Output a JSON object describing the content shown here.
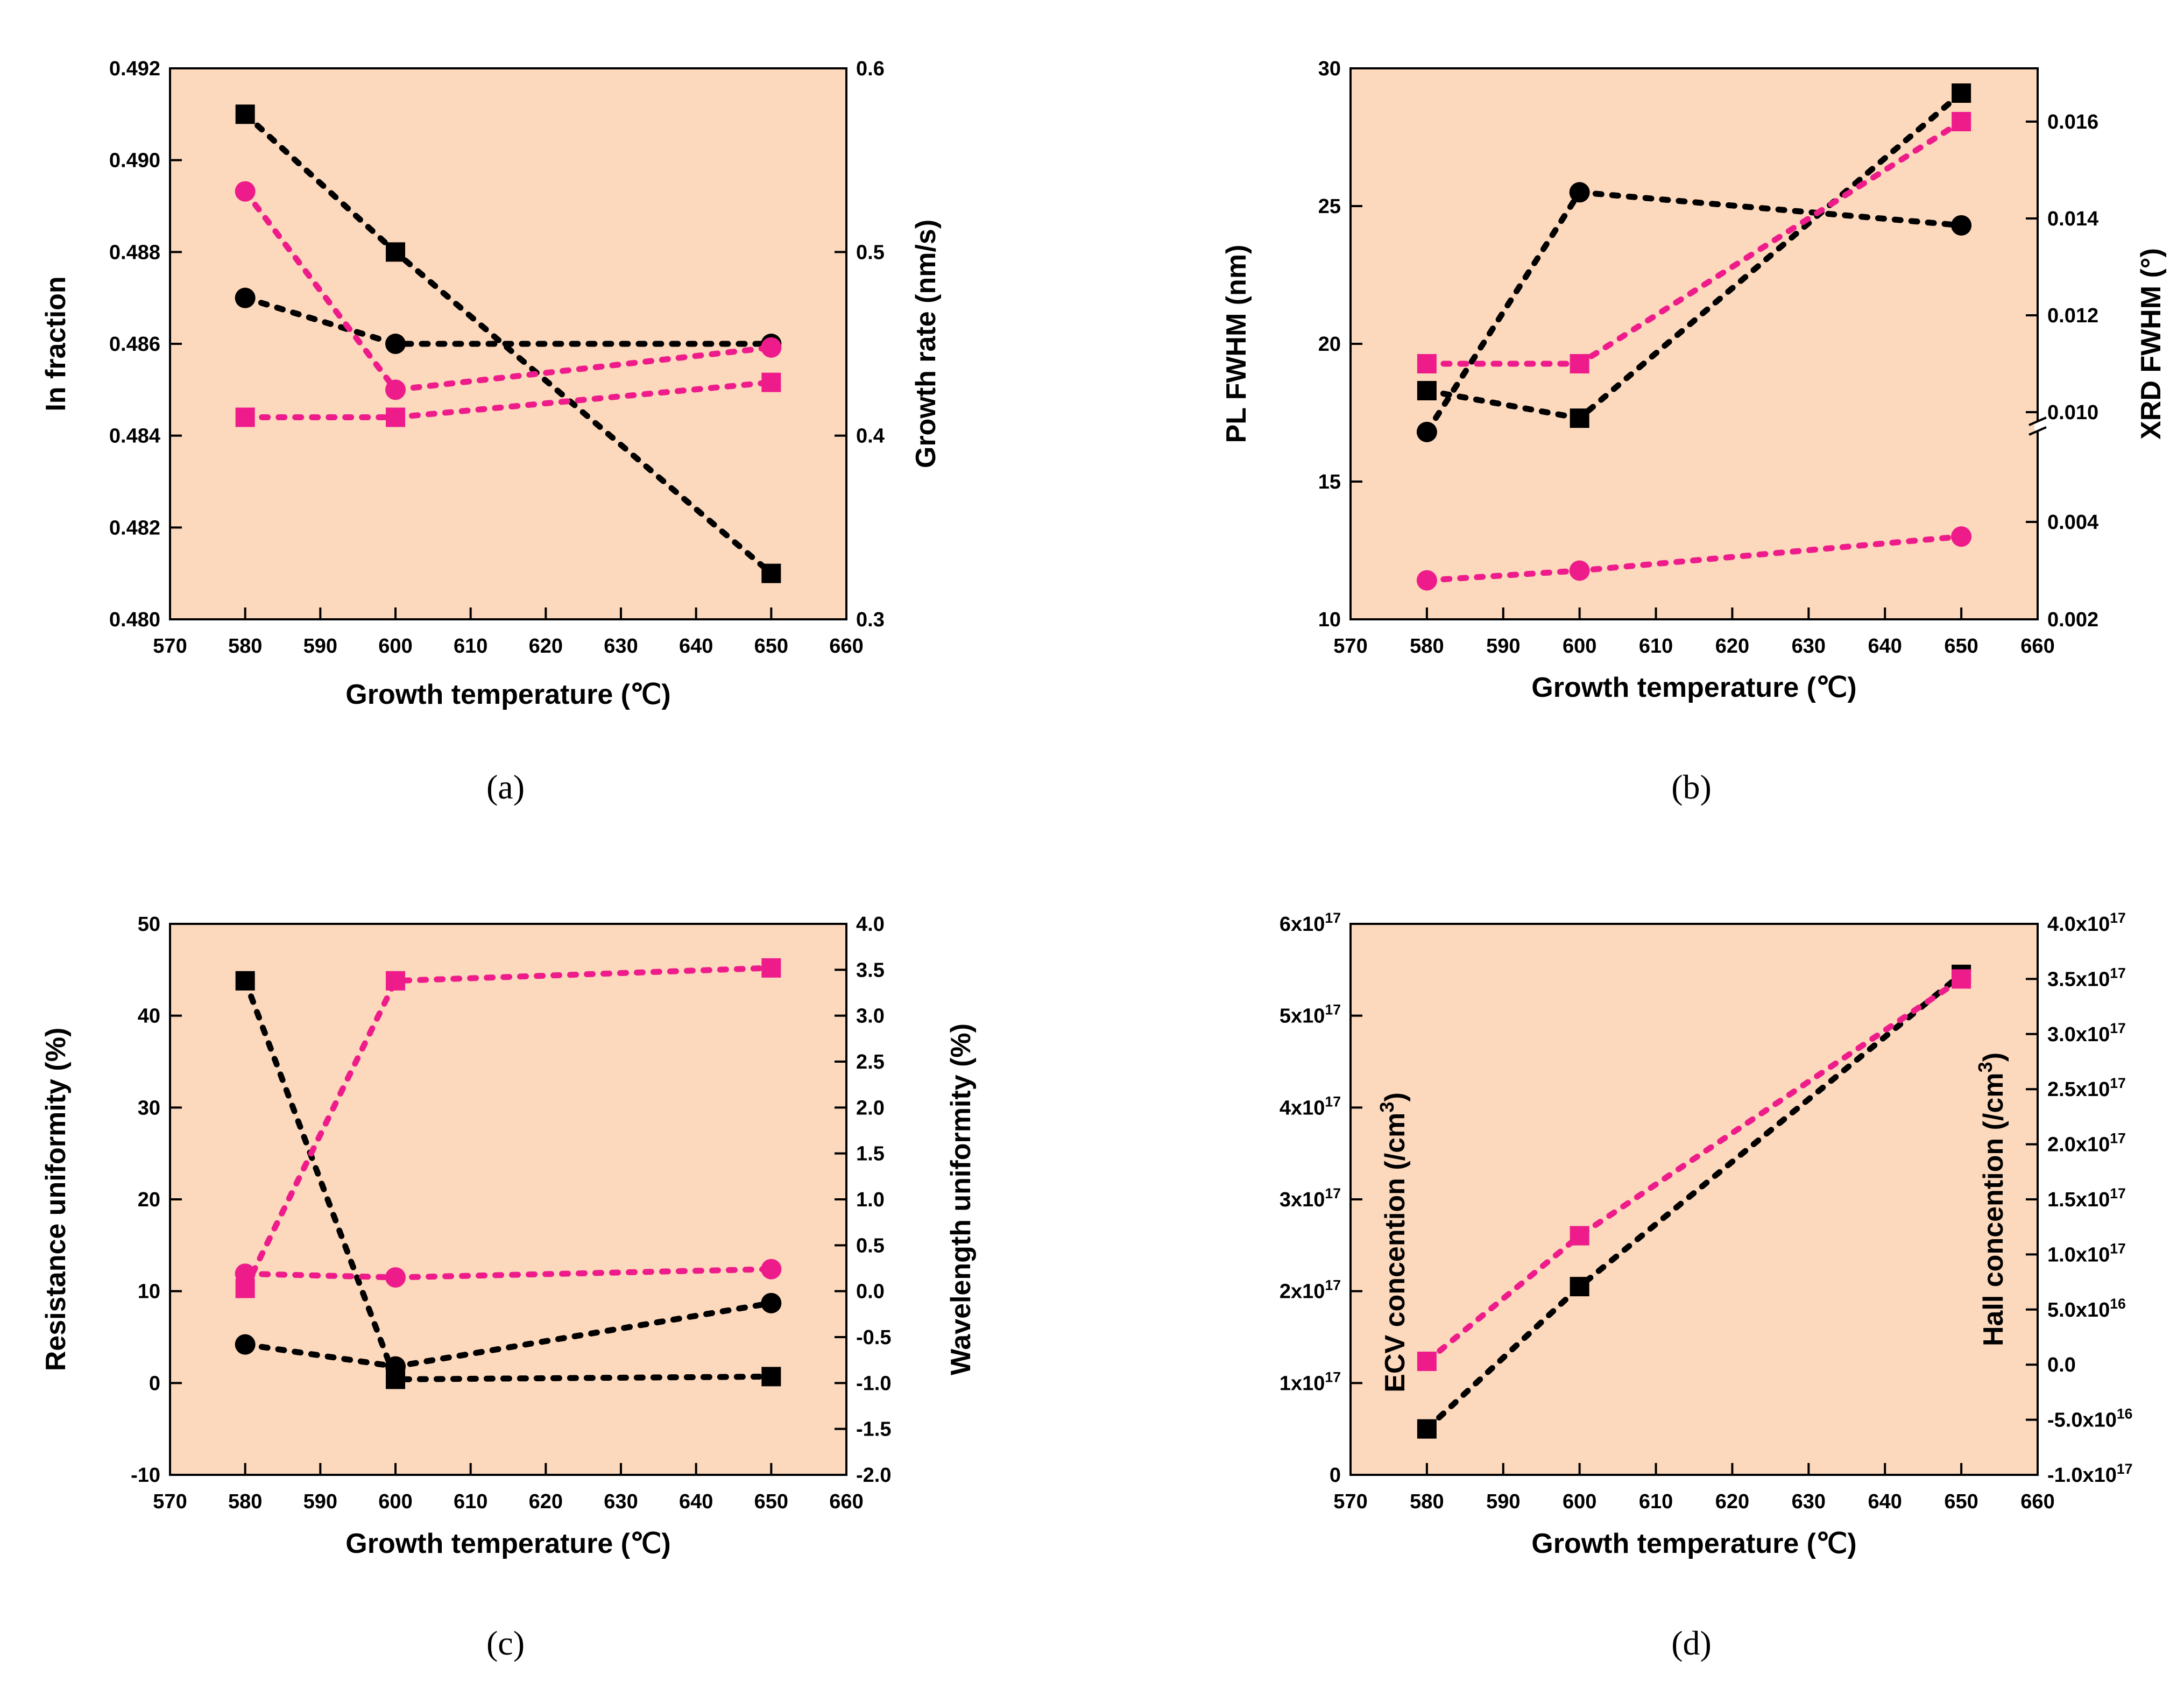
{
  "colors": {
    "plot_bg": "#FCD8BC",
    "series_black": "#000000",
    "series_pink": "#EE1C8B"
  },
  "chart_data": [
    {
      "panel_label": "(a)",
      "type": "scatter",
      "xlabel": "Growth temperature (℃)",
      "xlim": [
        570,
        660
      ],
      "xticks": [
        570,
        580,
        590,
        600,
        610,
        620,
        630,
        640,
        650,
        660
      ],
      "ylabel": "In fraction",
      "ylim": [
        0.48,
        0.492
      ],
      "yticks": [
        "0.480",
        "0.482",
        "0.484",
        "0.486",
        "0.488",
        "0.490",
        "0.492"
      ],
      "ylabel_right": "Growth rate (nm/s)",
      "ylim_right": [
        0.3,
        0.6
      ],
      "yticks_right": [
        "0.3",
        "0.4",
        "0.5",
        "0.6"
      ],
      "series": [
        {
          "name": "In fraction (square)",
          "axis": "left",
          "marker": "square",
          "color": "#000000",
          "x": [
            580,
            600,
            650
          ],
          "y": [
            0.491,
            0.488,
            0.481
          ]
        },
        {
          "name": "In fraction (circle)",
          "axis": "left",
          "marker": "circle",
          "color": "#000000",
          "x": [
            580,
            600,
            650
          ],
          "y": [
            0.487,
            0.486,
            0.486
          ]
        },
        {
          "name": "Growth rate (circle)",
          "axis": "right",
          "marker": "circle",
          "color": "#EE1C8B",
          "x": [
            580,
            600,
            650
          ],
          "y": [
            0.533,
            0.425,
            0.448
          ]
        },
        {
          "name": "Growth rate (square)",
          "axis": "right",
          "marker": "square",
          "color": "#EE1C8B",
          "x": [
            580,
            600,
            650
          ],
          "y": [
            0.41,
            0.41,
            0.429
          ]
        }
      ]
    },
    {
      "panel_label": "(b)",
      "type": "scatter",
      "xlabel": "Growth temperature (℃)",
      "xlim": [
        570,
        660
      ],
      "xticks": [
        570,
        580,
        590,
        600,
        610,
        620,
        630,
        640,
        650,
        660
      ],
      "ylabel": "PL FWHM (nm)",
      "ylim": [
        10,
        30
      ],
      "yticks": [
        "10",
        "15",
        "20",
        "25",
        "30"
      ],
      "ylabel_right": "XRD FWHM (°)",
      "ylim_right": [
        0.002,
        0.017
      ],
      "yticks_right": [
        "0.002",
        "0.004",
        "0.010",
        "0.012",
        "0.014",
        "0.016"
      ],
      "right_axis_break": true,
      "series": [
        {
          "name": "PL FWHM (circle)",
          "axis": "left",
          "marker": "circle",
          "color": "#000000",
          "x": [
            580,
            600,
            650
          ],
          "y": [
            16.8,
            25.5,
            24.3
          ]
        },
        {
          "name": "PL FWHM (square)",
          "axis": "left",
          "marker": "square",
          "color": "#000000",
          "x": [
            580,
            600,
            650
          ],
          "y": [
            18.3,
            17.3,
            29.1
          ]
        },
        {
          "name": "XRD FWHM (square)",
          "axis": "right",
          "marker": "square",
          "color": "#EE1C8B",
          "x": [
            580,
            600,
            650
          ],
          "y": [
            0.011,
            0.011,
            0.016
          ]
        },
        {
          "name": "XRD FWHM (circle)",
          "axis": "right",
          "marker": "circle",
          "color": "#EE1C8B",
          "x": [
            580,
            600,
            650
          ],
          "y": [
            0.0028,
            0.003,
            0.0037
          ]
        }
      ]
    },
    {
      "panel_label": "(c)",
      "type": "scatter",
      "xlabel": "Growth temperature (℃)",
      "xlim": [
        570,
        660
      ],
      "xticks": [
        570,
        580,
        590,
        600,
        610,
        620,
        630,
        640,
        650,
        660
      ],
      "ylabel": "Resistance uniformity (%)",
      "ylim": [
        -10,
        50
      ],
      "yticks": [
        "-10",
        "0",
        "10",
        "20",
        "30",
        "40",
        "50"
      ],
      "ylabel_right": "Wavelength uniformity (%)",
      "ylim_right": [
        -2.0,
        4.0
      ],
      "yticks_right": [
        "-2.0",
        "-1.5",
        "-1.0",
        "-0.5",
        "0.0",
        "0.5",
        "1.0",
        "1.5",
        "2.0",
        "2.5",
        "3.0",
        "3.5",
        "4.0"
      ],
      "series": [
        {
          "name": "Resistance uniformity (square)",
          "axis": "left",
          "marker": "square",
          "color": "#000000",
          "x": [
            580,
            600,
            650
          ],
          "y": [
            43.8,
            0.4,
            0.7
          ]
        },
        {
          "name": "Resistance uniformity (circle)",
          "axis": "left",
          "marker": "circle",
          "color": "#000000",
          "x": [
            580,
            600,
            650
          ],
          "y": [
            4.2,
            1.8,
            8.7
          ]
        },
        {
          "name": "Wavelength uniformity (square)",
          "axis": "right",
          "marker": "square",
          "color": "#EE1C8B",
          "x": [
            580,
            600,
            650
          ],
          "y": [
            0.03,
            3.38,
            3.52
          ]
        },
        {
          "name": "Wavelength uniformity (circle)",
          "axis": "right",
          "marker": "circle",
          "color": "#EE1C8B",
          "x": [
            580,
            600,
            650
          ],
          "y": [
            0.19,
            0.15,
            0.24
          ]
        }
      ]
    },
    {
      "panel_label": "(d)",
      "type": "scatter",
      "xlabel": "Growth temperature (℃)",
      "xlim": [
        570,
        660
      ],
      "xticks": [
        570,
        580,
        590,
        600,
        610,
        620,
        630,
        640,
        650,
        660
      ],
      "ylabel": "ECV concention (/cm3)",
      "ylim": [
        0,
        6e+17
      ],
      "yticks": [
        "0",
        "1x10^17",
        "2x10^17",
        "3x10^17",
        "4x10^17",
        "5x10^17",
        "6x10^17"
      ],
      "ylabel_right": "Hall concention (/cm3)",
      "ylim_right": [
        -1e+17,
        4e+17
      ],
      "yticks_right": [
        "-1.0x10^17",
        "-5.0x10^16",
        "0.0",
        "5.0x10^16",
        "1.0x10^17",
        "1.5x10^17",
        "2.0x10^17",
        "2.5x10^17",
        "3.0x10^17",
        "3.5x10^17",
        "4.0x10^17"
      ],
      "series": [
        {
          "name": "ECV concentration (square)",
          "axis": "left",
          "marker": "square",
          "color": "#000000",
          "x": [
            580,
            600,
            650
          ],
          "y": [
            5e+16,
            2.05e+17,
            5.45e+17
          ]
        },
        {
          "name": "Hall concentration (square)",
          "axis": "right",
          "marker": "square",
          "color": "#EE1C8B",
          "x": [
            580,
            600,
            650
          ],
          "y": [
            3000000000000000.0,
            1.17e+17,
            3.5e+17
          ]
        }
      ]
    }
  ]
}
